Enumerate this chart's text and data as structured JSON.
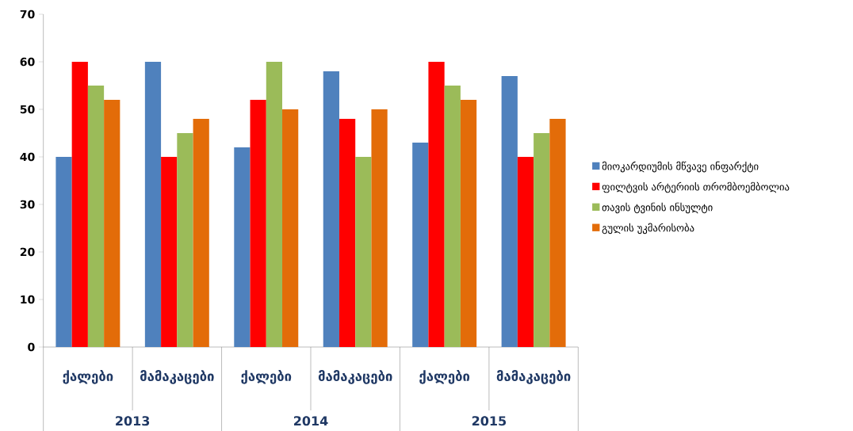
{
  "chart_data": {
    "type": "bar",
    "categories": [
      "ქალები",
      "მამაკაცები",
      "ქალები",
      "მამაკაცები",
      "ქალები",
      "მამაკაცები"
    ],
    "annotations": [
      "2013",
      "2014",
      "2015"
    ],
    "series": [
      {
        "name": "მიოკარდიუმის მწვავე ინფარქტი",
        "color": "#4f81bd",
        "values": [
          40,
          60,
          42,
          58,
          43,
          57
        ]
      },
      {
        "name": "ფილტვის არტერიის თრომბოემბოლია",
        "color": "#ff0000",
        "values": [
          60,
          40,
          52,
          48,
          60,
          40
        ]
      },
      {
        "name": "თავის ტვინის ინსულტი",
        "color": "#9bbb59",
        "values": [
          55,
          45,
          60,
          40,
          55,
          45
        ]
      },
      {
        "name": "გულის უკმარისობა",
        "color": "#e36c09",
        "values": [
          52,
          48,
          50,
          50,
          52,
          48
        ]
      }
    ],
    "ylim": [
      0,
      70
    ],
    "yticks": [
      0,
      10,
      20,
      30,
      40,
      50,
      60,
      70
    ],
    "grid": false,
    "legend": "right"
  }
}
